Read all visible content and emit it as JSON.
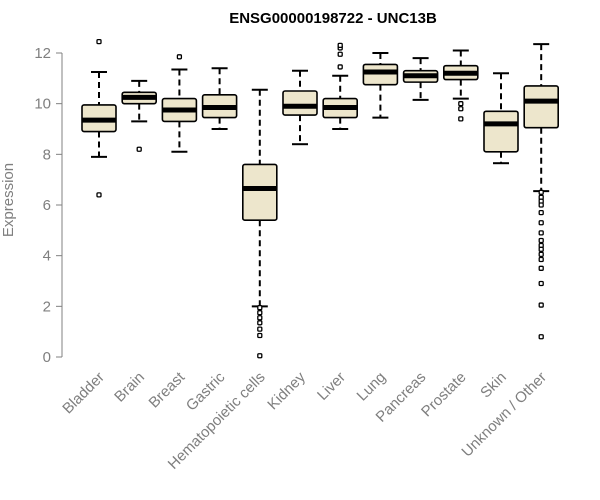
{
  "chart_data": {
    "type": "box",
    "title": "ENSG00000198722 - UNC13B",
    "xlabel": "",
    "ylabel": "Expression",
    "ylim": [
      0,
      12.5
    ],
    "y_ticks": [
      0,
      2,
      4,
      6,
      8,
      10,
      12
    ],
    "box_fill": "#ede6cc",
    "categories": [
      "Bladder",
      "Brain",
      "Breast",
      "Gastric",
      "Hematopoietic cells",
      "Kidney",
      "Liver",
      "Lung",
      "Pancreas",
      "Prostate",
      "Skin",
      "Unknown / Other"
    ],
    "boxes": [
      {
        "label": "Bladder",
        "whisker_low": 7.9,
        "q1": 8.9,
        "median": 9.35,
        "q3": 9.95,
        "whisker_high": 11.25,
        "outliers": [
          6.4,
          12.45
        ]
      },
      {
        "label": "Brain",
        "whisker_low": 9.3,
        "q1": 10.0,
        "median": 10.25,
        "q3": 10.45,
        "whisker_high": 10.9,
        "outliers": [
          8.2
        ]
      },
      {
        "label": "Breast",
        "whisker_low": 8.1,
        "q1": 9.3,
        "median": 9.75,
        "q3": 10.2,
        "whisker_high": 11.35,
        "outliers": [
          11.85
        ]
      },
      {
        "label": "Gastric",
        "whisker_low": 9.0,
        "q1": 9.45,
        "median": 9.85,
        "q3": 10.35,
        "whisker_high": 11.4,
        "outliers": []
      },
      {
        "label": "Hematopoietic cells",
        "whisker_low": 2.0,
        "q1": 5.4,
        "median": 6.65,
        "q3": 7.6,
        "whisker_high": 10.55,
        "outliers": [
          1.95,
          1.75,
          1.55,
          1.35,
          1.1,
          0.85,
          0.05
        ]
      },
      {
        "label": "Kidney",
        "whisker_low": 8.4,
        "q1": 9.55,
        "median": 9.9,
        "q3": 10.5,
        "whisker_high": 11.3,
        "outliers": []
      },
      {
        "label": "Liver",
        "whisker_low": 9.0,
        "q1": 9.45,
        "median": 9.85,
        "q3": 10.2,
        "whisker_high": 11.1,
        "outliers": [
          11.45,
          11.95,
          12.2,
          12.3
        ]
      },
      {
        "label": "Lung",
        "whisker_low": 9.45,
        "q1": 10.75,
        "median": 11.25,
        "q3": 11.55,
        "whisker_high": 12.0,
        "outliers": []
      },
      {
        "label": "Pancreas",
        "whisker_low": 10.15,
        "q1": 10.85,
        "median": 11.1,
        "q3": 11.3,
        "whisker_high": 11.8,
        "outliers": []
      },
      {
        "label": "Prostate",
        "whisker_low": 10.2,
        "q1": 10.95,
        "median": 11.2,
        "q3": 11.5,
        "whisker_high": 12.1,
        "outliers": [
          10.0,
          9.8,
          9.4
        ]
      },
      {
        "label": "Skin",
        "whisker_low": 7.65,
        "q1": 8.1,
        "median": 9.2,
        "q3": 9.7,
        "whisker_high": 11.2,
        "outliers": []
      },
      {
        "label": "Unknown / Other",
        "whisker_low": 6.55,
        "q1": 9.05,
        "median": 10.1,
        "q3": 10.7,
        "whisker_high": 12.35,
        "outliers": [
          6.5,
          6.3,
          6.15,
          6.0,
          5.7,
          5.3,
          4.9,
          4.6,
          4.4,
          4.25,
          4.05,
          3.85,
          3.5,
          2.9,
          2.05,
          0.8
        ]
      }
    ]
  }
}
